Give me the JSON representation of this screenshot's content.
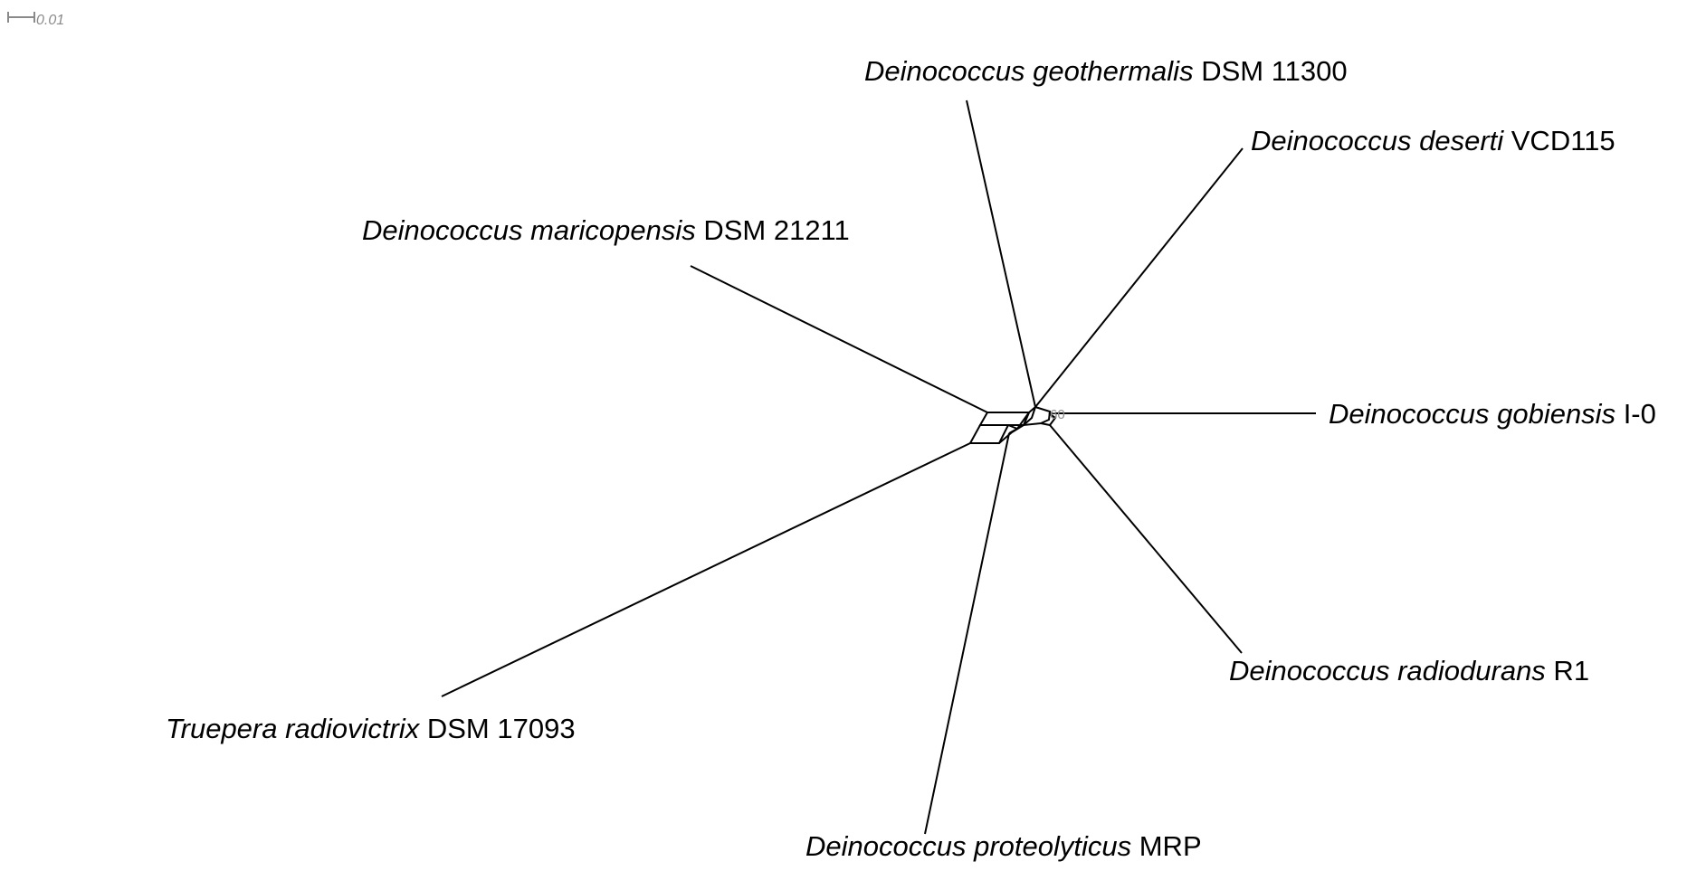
{
  "scale_bar": {
    "label": "0.01"
  },
  "bootstrap": {
    "value": "60"
  },
  "colors": {
    "edge": "#000000",
    "scale": "#8a8a8a",
    "text": "#000000"
  },
  "taxa": [
    {
      "id": "geothermalis",
      "genus": "Deinococcus geothermalis",
      "strain": " DSM 11300"
    },
    {
      "id": "deserti",
      "genus": "Deinococcus deserti",
      "strain": " VCD115"
    },
    {
      "id": "maricopensis",
      "genus": "Deinococcus maricopensis",
      "strain": " DSM 21211"
    },
    {
      "id": "gobiensis",
      "genus": "Deinococcus gobiensis",
      "strain": " I-0"
    },
    {
      "id": "radiodurans",
      "genus": "Deinococcus radiodurans",
      "strain": " R1"
    },
    {
      "id": "truepera",
      "genus": "Truepera radiovictrix",
      "strain": " DSM 17093"
    },
    {
      "id": "proteolyticus",
      "genus": "Deinococcus proteolyticus",
      "strain": " MRP"
    }
  ]
}
